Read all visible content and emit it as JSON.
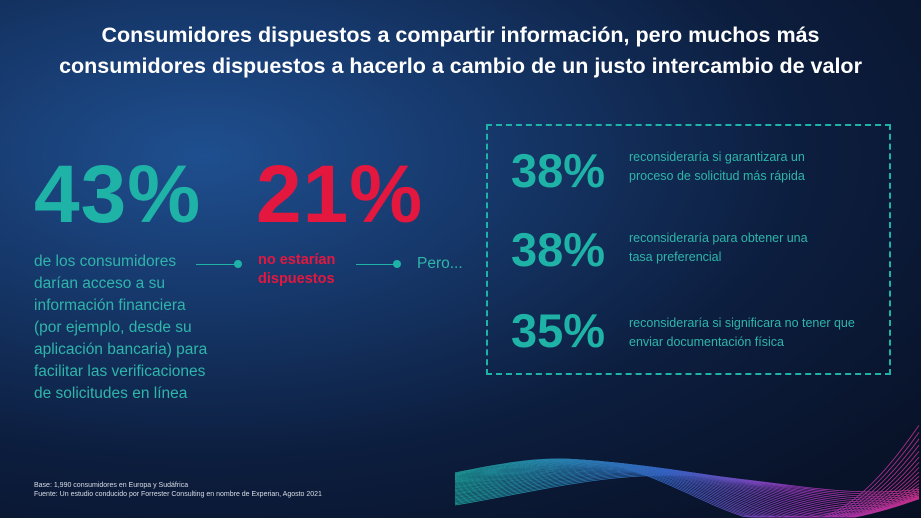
{
  "title": {
    "line1": "Consumidores dispuestos a compartir información, pero muchos más",
    "line2": "consumidores dispuestos a hacerlo a cambio de un justo intercambio de valor"
  },
  "stat_share": {
    "value": "43%",
    "lines": [
      "de los consumidores",
      "darían acceso a su",
      "información financiera",
      "(por ejemplo, desde su",
      "aplicación bancaria) para",
      "facilitar las verificaciones",
      "de solicitudes en línea"
    ]
  },
  "stat_unwilling": {
    "value": "21%",
    "lines": [
      "no estarían",
      "dispuestos"
    ]
  },
  "pero_label": "Pero...",
  "reconsider": [
    {
      "value": "38%",
      "lines": [
        "reconsideraría si garantizara un",
        "proceso de solicitud más rápida"
      ]
    },
    {
      "value": "38%",
      "lines": [
        "reconsideraría para obtener una",
        "tasa preferencial"
      ]
    },
    {
      "value": "35%",
      "lines": [
        "reconsideraría si significara no tener que",
        "enviar documentación física"
      ]
    }
  ],
  "footer": {
    "base": "Base: 1,990 consumidores en Europa y Sudáfrica",
    "source": "Fuente: Un estudio conducido por Forrester Consulting en nombre de Experian, Agosto 2021"
  },
  "colors": {
    "accent_teal": "#1fb3a8",
    "accent_red": "#e4173f",
    "background": "#0c1d3d"
  }
}
